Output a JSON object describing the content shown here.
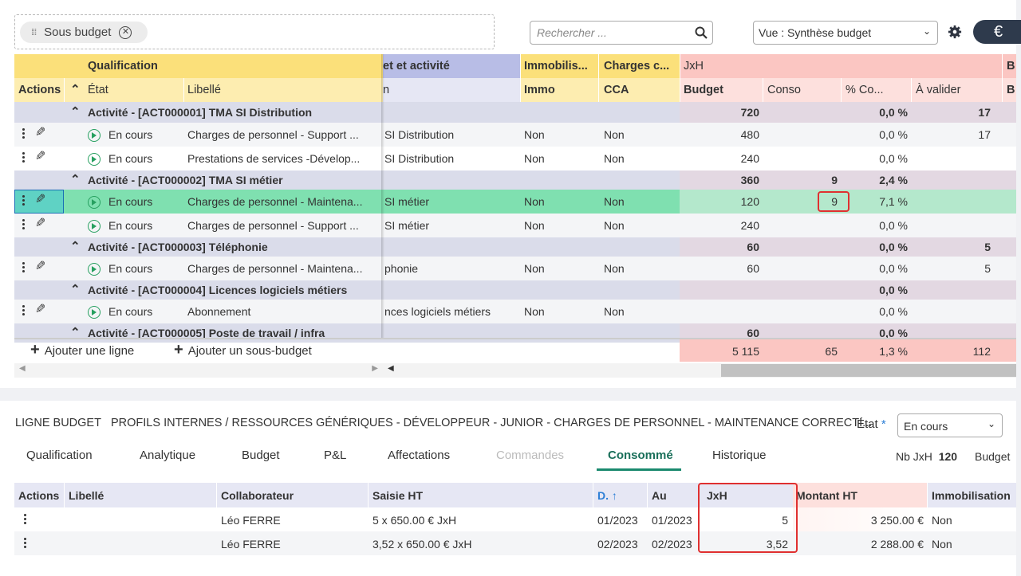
{
  "toolbar": {
    "chip_label": "Sous budget",
    "search_placeholder": "Rechercher ...",
    "view_label": "Vue : Synthèse budget",
    "currency_label": "€"
  },
  "grid": {
    "group_headers": {
      "qualification": "Qualification",
      "projet": "et et activité",
      "immobilisation": "Immobilis...",
      "charges": "Charges c...",
      "jxh": "JxH",
      "b": "B"
    },
    "columns": {
      "actions": "Actions",
      "etat": "État",
      "libelle": "Libellé",
      "activite": "n",
      "immo": "Immo",
      "cca": "CCA",
      "budget": "Budget",
      "conso": "Conso",
      "pct": "% Co...",
      "avalider": "À valider",
      "b": "B"
    },
    "rows": [
      {
        "type": "group",
        "label": "Activité - [ACT000001] TMA SI Distribution",
        "budget": "720",
        "conso": "",
        "pct": "0,0 %",
        "avalider": "17"
      },
      {
        "type": "line",
        "etat": "En cours",
        "libelle": "Charges de personnel - Support ...",
        "activite": "SI Distribution",
        "immo": "Non",
        "cca": "Non",
        "budget": "480",
        "conso": "",
        "pct": "0,0 %",
        "avalider": "17"
      },
      {
        "type": "line",
        "etat": "En cours",
        "libelle": "Prestations de services -Dévelop...",
        "activite": "SI Distribution",
        "immo": "Non",
        "cca": "Non",
        "budget": "240",
        "conso": "",
        "pct": "0,0 %",
        "avalider": ""
      },
      {
        "type": "group",
        "label": "Activité - [ACT000002] TMA SI métier",
        "budget": "360",
        "conso": "9",
        "pct": "2,4 %",
        "avalider": ""
      },
      {
        "type": "line",
        "selected": true,
        "etat": "En cours",
        "libelle": "Charges de personnel - Maintena...",
        "activite": "SI métier",
        "immo": "Non",
        "cca": "Non",
        "budget": "120",
        "conso": "9",
        "pct": "7,1 %",
        "avalider": ""
      },
      {
        "type": "line",
        "etat": "En cours",
        "libelle": "Charges de personnel - Support ...",
        "activite": "SI métier",
        "immo": "Non",
        "cca": "Non",
        "budget": "240",
        "conso": "",
        "pct": "0,0 %",
        "avalider": ""
      },
      {
        "type": "group",
        "label": "Activité - [ACT000003] Téléphonie",
        "budget": "60",
        "conso": "",
        "pct": "0,0 %",
        "avalider": "5"
      },
      {
        "type": "line",
        "etat": "En cours",
        "libelle": "Charges de personnel - Maintena...",
        "activite": "phonie",
        "immo": "Non",
        "cca": "Non",
        "budget": "60",
        "conso": "",
        "pct": "0,0 %",
        "avalider": "5"
      },
      {
        "type": "group",
        "label": "Activité - [ACT000004] Licences logiciels métiers",
        "budget": "",
        "conso": "",
        "pct": "0,0 %",
        "avalider": ""
      },
      {
        "type": "line",
        "etat": "En cours",
        "libelle": "Abonnement",
        "activite": "nces logiciels métiers",
        "immo": "Non",
        "cca": "Non",
        "budget": "",
        "conso": "",
        "pct": "0,0 %",
        "avalider": ""
      },
      {
        "type": "group",
        "label": "Activité - [ACT000005] Poste de travail / infra",
        "budget": "60",
        "conso": "",
        "pct": "0,0 %",
        "avalider": ""
      }
    ],
    "footer": {
      "add_line": "Ajouter une ligne",
      "add_subbudget": "Ajouter un sous-budget",
      "budget": "5 115",
      "conso": "65",
      "pct": "1,3 %",
      "avalider": "112"
    }
  },
  "detail": {
    "prefix": "LIGNE BUDGET",
    "title": "PROFILS INTERNES / RESSOURCES GÉNÉRIQUES - DÉVELOPPEUR - JUNIOR - CHARGES DE PERSONNEL - MAINTENANCE CORRECTI...",
    "etat_label": "État",
    "etat_required": "*",
    "etat_value": "En cours",
    "tabs": [
      "Qualification",
      "Analytique",
      "Budget",
      "P&L",
      "Affectations",
      "Commandes",
      "Consommé",
      "Historique"
    ],
    "active_tab": "Consommé",
    "nb_jxh_label": "Nb JxH",
    "nb_jxh_value": "120",
    "budget_label": "Budget",
    "table": {
      "columns": {
        "actions": "Actions",
        "libelle": "Libellé",
        "collaborateur": "Collaborateur",
        "saisie": "Saisie HT",
        "du": "D.",
        "au": "Au",
        "jxh": "JxH",
        "montant": "Montant HT",
        "immo": "Immobilisation"
      },
      "rows": [
        {
          "libelle": "",
          "collaborateur": "Léo FERRE",
          "saisie": "5 x 650.00 € JxH",
          "du": "01/2023",
          "au": "01/2023",
          "jxh": "5",
          "montant": "3 250.00 €",
          "immo": "Non"
        },
        {
          "libelle": "",
          "collaborateur": "Léo FERRE",
          "saisie": "3,52 x 650.00 € JxH",
          "du": "02/2023",
          "au": "02/2023",
          "jxh": "3,52",
          "montant": "2 288.00 €",
          "immo": "Non"
        }
      ]
    }
  },
  "colors": {
    "accent": "#1a8a6e",
    "highlight_border": "#e03030",
    "jxh_header": "#fbc6c2",
    "qual_header": "#fbe07a",
    "proj_header": "#b8bde6",
    "selected_row": "#7fe0b0"
  }
}
